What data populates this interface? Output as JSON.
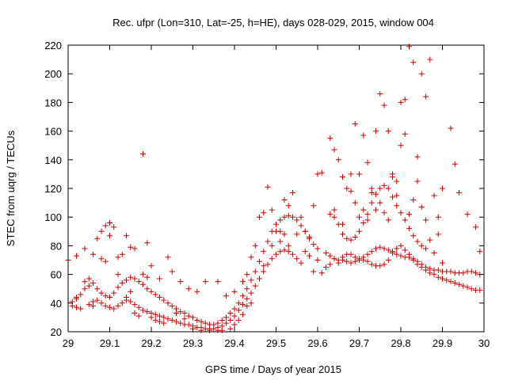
{
  "chart_data": {
    "type": "scatter",
    "title": "Rec. ufpr (Lon=310, Lat=-25, h=HE), days 028-029, 2015, window 004",
    "xlabel": "GPS time / Days of year 2015",
    "ylabel": "STEC from uqrg / TECUs",
    "xlim": [
      29.0,
      30.0
    ],
    "ylim": [
      20,
      220
    ],
    "xticks": [
      "29",
      "29.1",
      "29.2",
      "29.3",
      "29.4",
      "29.5",
      "29.6",
      "29.7",
      "29.8",
      "29.9",
      "30"
    ],
    "yticks": [
      "20",
      "40",
      "60",
      "80",
      "100",
      "120",
      "140",
      "160",
      "180",
      "200",
      "220"
    ],
    "grid": false,
    "legend": "none",
    "marker": "plus",
    "color": "#cc0000",
    "points": [
      [
        29.01,
        41
      ],
      [
        29.02,
        44
      ],
      [
        29.03,
        46
      ],
      [
        29.04,
        50
      ],
      [
        29.05,
        52
      ],
      [
        29.06,
        54
      ],
      [
        29.07,
        50
      ],
      [
        29.08,
        47
      ],
      [
        29.09,
        45
      ],
      [
        29.1,
        44
      ],
      [
        29.11,
        47
      ],
      [
        29.12,
        51
      ],
      [
        29.13,
        54
      ],
      [
        29.14,
        56
      ],
      [
        29.15,
        58
      ],
      [
        29.16,
        57
      ],
      [
        29.17,
        55
      ],
      [
        29.18,
        53
      ],
      [
        29.19,
        50
      ],
      [
        29.2,
        48
      ],
      [
        29.21,
        46
      ],
      [
        29.22,
        44
      ],
      [
        29.23,
        42
      ],
      [
        29.24,
        40
      ],
      [
        29.25,
        38
      ],
      [
        29.26,
        36
      ],
      [
        29.27,
        34
      ],
      [
        29.28,
        33
      ],
      [
        29.29,
        31
      ],
      [
        29.3,
        30
      ],
      [
        29.31,
        28
      ],
      [
        29.32,
        27
      ],
      [
        29.33,
        26
      ],
      [
        29.34,
        25
      ],
      [
        29.35,
        25
      ],
      [
        29.36,
        26
      ],
      [
        29.37,
        28
      ],
      [
        29.38,
        30
      ],
      [
        29.39,
        33
      ],
      [
        29.4,
        36
      ],
      [
        29.41,
        40
      ],
      [
        29.42,
        45
      ],
      [
        29.43,
        50
      ],
      [
        29.44,
        56
      ],
      [
        29.45,
        62
      ],
      [
        29.46,
        69
      ],
      [
        29.47,
        76
      ],
      [
        29.48,
        83
      ],
      [
        29.49,
        90
      ],
      [
        29.5,
        95
      ],
      [
        29.51,
        98
      ],
      [
        29.52,
        100
      ],
      [
        29.53,
        101
      ],
      [
        29.54,
        100
      ],
      [
        29.55,
        98
      ],
      [
        29.56,
        94
      ],
      [
        29.57,
        90
      ],
      [
        29.58,
        85
      ],
      [
        29.59,
        81
      ],
      [
        29.6,
        78
      ],
      [
        29.01,
        38
      ],
      [
        29.02,
        37
      ],
      [
        29.03,
        36
      ],
      [
        29.05,
        39
      ],
      [
        29.06,
        41
      ],
      [
        29.07,
        42
      ],
      [
        29.08,
        40
      ],
      [
        29.09,
        38
      ],
      [
        29.1,
        37
      ],
      [
        29.11,
        36
      ],
      [
        29.12,
        38
      ],
      [
        29.13,
        40
      ],
      [
        29.14,
        42
      ],
      [
        29.15,
        41
      ],
      [
        29.16,
        39
      ],
      [
        29.17,
        37
      ],
      [
        29.18,
        35
      ],
      [
        29.19,
        34
      ],
      [
        29.2,
        33
      ],
      [
        29.21,
        32
      ],
      [
        29.22,
        31
      ],
      [
        29.23,
        30
      ],
      [
        29.24,
        29
      ],
      [
        29.25,
        28
      ],
      [
        29.26,
        27
      ],
      [
        29.27,
        26
      ],
      [
        29.28,
        25
      ],
      [
        29.29,
        25
      ],
      [
        29.3,
        24
      ],
      [
        29.31,
        23
      ],
      [
        29.32,
        23
      ],
      [
        29.33,
        22
      ],
      [
        29.34,
        22
      ],
      [
        29.35,
        22
      ],
      [
        29.36,
        23
      ],
      [
        29.37,
        24
      ],
      [
        29.38,
        26
      ],
      [
        29.39,
        28
      ],
      [
        29.4,
        31
      ],
      [
        29.41,
        35
      ],
      [
        29.42,
        39
      ],
      [
        29.43,
        43
      ],
      [
        29.44,
        47
      ],
      [
        29.45,
        52
      ],
      [
        29.46,
        57
      ],
      [
        29.47,
        62
      ],
      [
        29.48,
        67
      ],
      [
        29.49,
        71
      ],
      [
        29.5,
        74
      ],
      [
        29.51,
        76
      ],
      [
        29.52,
        77
      ],
      [
        29.53,
        76
      ],
      [
        29.54,
        74
      ],
      [
        29.55,
        71
      ],
      [
        29.56,
        68
      ],
      [
        29.0,
        70
      ],
      [
        29.02,
        73
      ],
      [
        29.04,
        78
      ],
      [
        29.06,
        74
      ],
      [
        29.07,
        85
      ],
      [
        29.08,
        90
      ],
      [
        29.09,
        94
      ],
      [
        29.1,
        96
      ],
      [
        29.11,
        93
      ],
      [
        29.12,
        72
      ],
      [
        29.13,
        74
      ],
      [
        29.14,
        87
      ],
      [
        29.15,
        79
      ],
      [
        29.16,
        78
      ],
      [
        29.18,
        144
      ],
      [
        29.19,
        82
      ],
      [
        29.2,
        66
      ],
      [
        29.22,
        57
      ],
      [
        29.24,
        72
      ],
      [
        29.25,
        62
      ],
      [
        29.27,
        55
      ],
      [
        29.29,
        50
      ],
      [
        29.31,
        48
      ],
      [
        29.33,
        55
      ],
      [
        29.36,
        55
      ],
      [
        29.38,
        45
      ],
      [
        29.4,
        48
      ],
      [
        29.42,
        55
      ],
      [
        29.43,
        60
      ],
      [
        29.44,
        72
      ],
      [
        29.45,
        80
      ],
      [
        29.46,
        100
      ],
      [
        29.47,
        103
      ],
      [
        29.48,
        121
      ],
      [
        29.49,
        105
      ],
      [
        29.5,
        90
      ],
      [
        29.51,
        83
      ],
      [
        29.52,
        112
      ],
      [
        29.53,
        108
      ],
      [
        29.54,
        117
      ],
      [
        29.56,
        100
      ],
      [
        29.57,
        90
      ],
      [
        29.58,
        86
      ],
      [
        29.59,
        108
      ],
      [
        29.6,
        130
      ],
      [
        29.61,
        131
      ],
      [
        29.02,
        43
      ],
      [
        29.04,
        55
      ],
      [
        29.05,
        57
      ],
      [
        29.06,
        38
      ],
      [
        29.08,
        71
      ],
      [
        29.09,
        69
      ],
      [
        29.1,
        87
      ],
      [
        29.12,
        60
      ],
      [
        29.14,
        44
      ],
      [
        29.15,
        48
      ],
      [
        29.16,
        33
      ],
      [
        29.17,
        31
      ],
      [
        29.18,
        60
      ],
      [
        29.19,
        58
      ],
      [
        29.2,
        30
      ],
      [
        29.21,
        28
      ],
      [
        29.22,
        27
      ],
      [
        29.23,
        26
      ],
      [
        29.26,
        33
      ],
      [
        29.28,
        29
      ],
      [
        29.3,
        22
      ],
      [
        29.32,
        21
      ],
      [
        29.34,
        21
      ],
      [
        29.36,
        21
      ],
      [
        29.37,
        21
      ],
      [
        29.39,
        22
      ],
      [
        29.4,
        25
      ],
      [
        29.41,
        28
      ],
      [
        29.42,
        32
      ],
      [
        29.43,
        38
      ],
      [
        29.44,
        40
      ],
      [
        29.47,
        66
      ],
      [
        29.49,
        80
      ],
      [
        29.51,
        90
      ],
      [
        29.52,
        88
      ],
      [
        29.53,
        80
      ],
      [
        29.55,
        88
      ],
      [
        29.57,
        76
      ],
      [
        29.58,
        73
      ],
      [
        29.59,
        62
      ],
      [
        29.6,
        70
      ],
      [
        29.61,
        61
      ],
      [
        29.62,
        75
      ],
      [
        29.63,
        73
      ],
      [
        29.64,
        71
      ],
      [
        29.65,
        70
      ],
      [
        29.66,
        70
      ],
      [
        29.67,
        69
      ],
      [
        29.68,
        68
      ],
      [
        29.69,
        69
      ],
      [
        29.7,
        70
      ],
      [
        29.71,
        72
      ],
      [
        29.72,
        74
      ],
      [
        29.73,
        76
      ],
      [
        29.74,
        78
      ],
      [
        29.75,
        79
      ],
      [
        29.76,
        78
      ],
      [
        29.77,
        77
      ],
      [
        29.78,
        76
      ],
      [
        29.79,
        74
      ],
      [
        29.8,
        73
      ],
      [
        29.81,
        72
      ],
      [
        29.82,
        72
      ],
      [
        29.83,
        70
      ],
      [
        29.84,
        67
      ],
      [
        29.85,
        65
      ],
      [
        29.86,
        63
      ],
      [
        29.87,
        61
      ],
      [
        29.88,
        60
      ],
      [
        29.89,
        58
      ],
      [
        29.9,
        57
      ],
      [
        29.91,
        56
      ],
      [
        29.92,
        55
      ],
      [
        29.93,
        54
      ],
      [
        29.94,
        53
      ],
      [
        29.95,
        52
      ],
      [
        29.96,
        51
      ],
      [
        29.97,
        50
      ],
      [
        29.98,
        49
      ],
      [
        29.99,
        49
      ],
      [
        29.62,
        65
      ],
      [
        29.63,
        67
      ],
      [
        29.64,
        71
      ],
      [
        29.65,
        68
      ],
      [
        29.66,
        72
      ],
      [
        29.67,
        74
      ],
      [
        29.68,
        74
      ],
      [
        29.69,
        72
      ],
      [
        29.7,
        71
      ],
      [
        29.71,
        70
      ],
      [
        29.72,
        69
      ],
      [
        29.73,
        67
      ],
      [
        29.74,
        66
      ],
      [
        29.75,
        66
      ],
      [
        29.76,
        67
      ],
      [
        29.77,
        70
      ],
      [
        29.78,
        75
      ],
      [
        29.79,
        78
      ],
      [
        29.8,
        80
      ],
      [
        29.81,
        77
      ],
      [
        29.82,
        74
      ],
      [
        29.83,
        71
      ],
      [
        29.84,
        69
      ],
      [
        29.85,
        67
      ],
      [
        29.86,
        65
      ],
      [
        29.87,
        64
      ],
      [
        29.88,
        63
      ],
      [
        29.89,
        63
      ],
      [
        29.9,
        62
      ],
      [
        29.91,
        62
      ],
      [
        29.92,
        62
      ],
      [
        29.93,
        61
      ],
      [
        29.94,
        61
      ],
      [
        29.95,
        61
      ],
      [
        29.96,
        62
      ],
      [
        29.97,
        62
      ],
      [
        29.98,
        61
      ],
      [
        29.99,
        60
      ],
      [
        29.63,
        102
      ],
      [
        29.64,
        100
      ],
      [
        29.65,
        95
      ],
      [
        29.66,
        88
      ],
      [
        29.67,
        85
      ],
      [
        29.68,
        84
      ],
      [
        29.69,
        86
      ],
      [
        29.7,
        90
      ],
      [
        29.71,
        96
      ],
      [
        29.72,
        102
      ],
      [
        29.73,
        110
      ],
      [
        29.74,
        116
      ],
      [
        29.75,
        120
      ],
      [
        29.76,
        122
      ],
      [
        29.77,
        120
      ],
      [
        29.78,
        114
      ],
      [
        29.79,
        108
      ],
      [
        29.8,
        103
      ],
      [
        29.81,
        98
      ],
      [
        29.82,
        92
      ],
      [
        29.83,
        87
      ],
      [
        29.84,
        83
      ],
      [
        29.85,
        80
      ],
      [
        29.86,
        78
      ],
      [
        29.63,
        155
      ],
      [
        29.64,
        147
      ],
      [
        29.65,
        140
      ],
      [
        29.66,
        128
      ],
      [
        29.67,
        120
      ],
      [
        29.68,
        130
      ],
      [
        29.69,
        165
      ],
      [
        29.7,
        130
      ],
      [
        29.71,
        157
      ],
      [
        29.72,
        138
      ],
      [
        29.73,
        120
      ],
      [
        29.74,
        160
      ],
      [
        29.75,
        186
      ],
      [
        29.76,
        178
      ],
      [
        29.77,
        160
      ],
      [
        29.78,
        130
      ],
      [
        29.79,
        125
      ],
      [
        29.8,
        180
      ],
      [
        29.81,
        182
      ],
      [
        29.82,
        219
      ],
      [
        29.83,
        208
      ],
      [
        29.84,
        142
      ],
      [
        29.85,
        200
      ],
      [
        29.86,
        184
      ],
      [
        29.87,
        210
      ],
      [
        29.88,
        115
      ],
      [
        29.89,
        100
      ],
      [
        29.9,
        120
      ],
      [
        29.92,
        162
      ],
      [
        29.93,
        137
      ],
      [
        29.94,
        117
      ],
      [
        29.96,
        102
      ],
      [
        29.98,
        93
      ],
      [
        29.99,
        76
      ],
      [
        29.64,
        105
      ],
      [
        29.66,
        95
      ],
      [
        29.68,
        118
      ],
      [
        29.69,
        110
      ],
      [
        29.7,
        100
      ],
      [
        29.71,
        105
      ],
      [
        29.72,
        98
      ],
      [
        29.73,
        117
      ],
      [
        29.74,
        105
      ],
      [
        29.75,
        110
      ],
      [
        29.76,
        103
      ],
      [
        29.77,
        98
      ],
      [
        29.78,
        128
      ],
      [
        29.79,
        115
      ],
      [
        29.8,
        150
      ],
      [
        29.81,
        158
      ],
      [
        29.82,
        102
      ],
      [
        29.83,
        112
      ],
      [
        29.84,
        125
      ],
      [
        29.85,
        107
      ],
      [
        29.86,
        98
      ],
      [
        29.87,
        84
      ],
      [
        29.88,
        75
      ],
      [
        29.89,
        88
      ],
      [
        29.9,
        68
      ]
    ]
  }
}
